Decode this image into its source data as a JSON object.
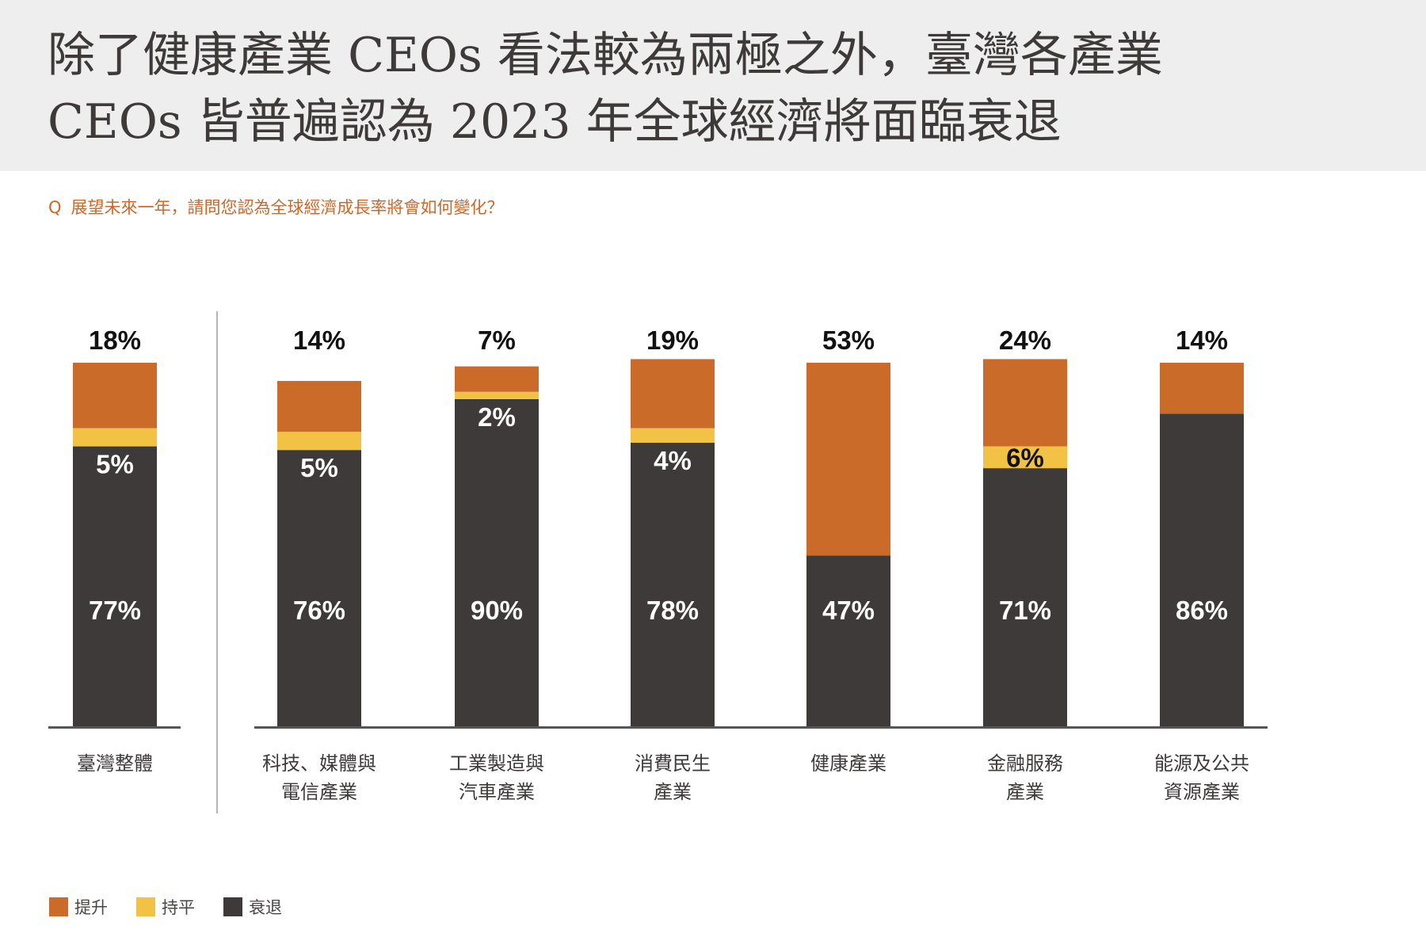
{
  "header": {
    "title_line1": "除了健康產業 CEOs 看法較為兩極之外，臺灣各產業",
    "title_line2": "CEOs 皆普遍認為 2023 年全球經濟將面臨衰退"
  },
  "question": {
    "marker": "Q",
    "text": "展望未來一年，請問您認為全球經濟成長率將會如何變化？"
  },
  "colors": {
    "increase": "#cb6b2a",
    "flat": "#f2c245",
    "decline": "#3e3a39",
    "axis": "#555555",
    "divider": "#b5b5b5",
    "header_bg": "#eeeeee",
    "question": "#c9692a"
  },
  "chart_data": {
    "type": "bar",
    "stacked": true,
    "title": "展望未來一年，請問您認為全球經濟成長率將會如何變化？",
    "xlabel": "",
    "ylabel": "",
    "ylim": [
      0,
      100
    ],
    "grid": false,
    "legend_position": "bottom-left",
    "categories": [
      [
        "臺灣整體"
      ],
      [
        "科技、媒體與",
        "電信產業"
      ],
      [
        "工業製造與",
        "汽車產業"
      ],
      [
        "消費民生",
        "產業"
      ],
      [
        "健康產業"
      ],
      [
        "金融服務",
        "產業"
      ],
      [
        "能源及公共",
        "資源產業"
      ]
    ],
    "series": [
      {
        "name": "衰退",
        "key": "decline",
        "values": [
          77,
          76,
          90,
          78,
          47,
          71,
          86
        ],
        "labels": [
          "77%",
          "76%",
          "90%",
          "78%",
          "47%",
          "71%",
          "86%"
        ]
      },
      {
        "name": "持平",
        "key": "flat",
        "values": [
          5,
          5,
          2,
          4,
          0,
          6,
          0
        ],
        "labels": [
          "5%",
          "5%",
          "2%",
          "4%",
          "",
          "6%",
          ""
        ]
      },
      {
        "name": "提升",
        "key": "increase",
        "values": [
          18,
          14,
          7,
          19,
          53,
          24,
          14
        ],
        "labels": [
          "18%",
          "14%",
          "7%",
          "19%",
          "53%",
          "24%",
          "14%"
        ]
      }
    ],
    "legend": [
      {
        "name": "提升",
        "key": "increase"
      },
      {
        "name": "持平",
        "key": "flat"
      },
      {
        "name": "衰退",
        "key": "decline"
      }
    ],
    "group_divider_after_index": 0
  }
}
